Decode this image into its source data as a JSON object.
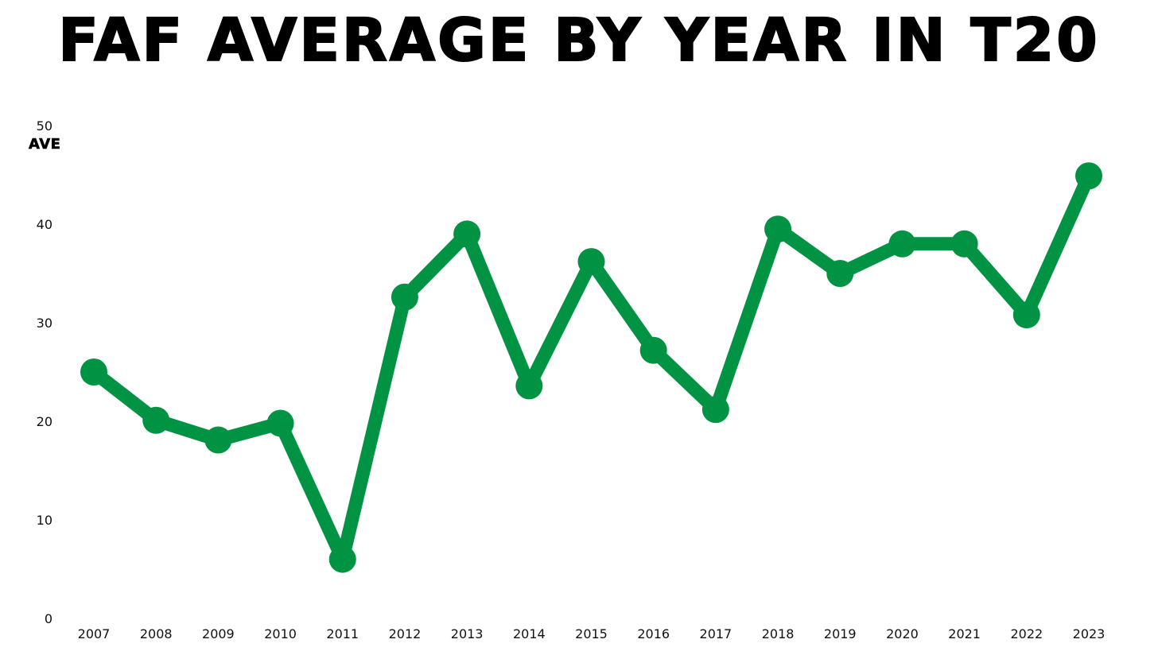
{
  "chart_data": {
    "type": "line",
    "title": "FAF AVERAGE BY YEAR IN T20",
    "xlabel": "",
    "ylabel": "AVE",
    "categories": [
      "2007",
      "2008",
      "2009",
      "2010",
      "2011",
      "2012",
      "2013",
      "2014",
      "2015",
      "2016",
      "2017",
      "2018",
      "2019",
      "2020",
      "2021",
      "2022",
      "2023"
    ],
    "series": [
      {
        "values": [
          25.0,
          20.1,
          18.1,
          19.8,
          6.0,
          32.6,
          39.0,
          23.6,
          36.2,
          27.2,
          21.2,
          39.5,
          35.0,
          38.0,
          38.0,
          30.8,
          44.9
        ]
      }
    ],
    "ylim": [
      0,
      50
    ],
    "yticks": [
      "0",
      "10",
      "20",
      "30",
      "40",
      "50"
    ],
    "grid": false,
    "legend": "none",
    "colors": {
      "line": "#019344",
      "text": "#111111",
      "background": "#ffffff"
    }
  }
}
